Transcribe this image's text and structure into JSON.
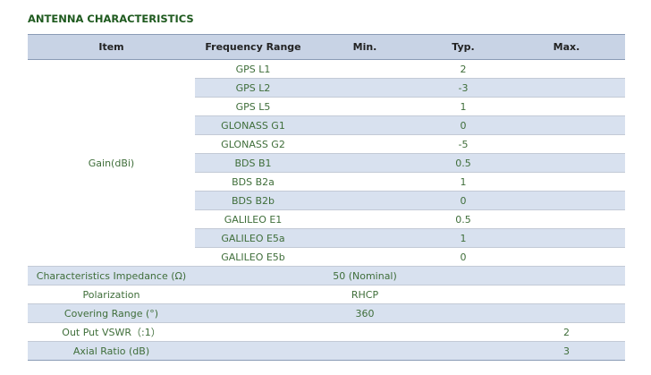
{
  "header": {
    "title": "ANTENNA CHARACTERISTICS"
  },
  "table": {
    "columns": [
      "Item",
      "Frequency Range",
      "Min.",
      "Typ.",
      "Max."
    ],
    "gain": {
      "label": "Gain(dBi)",
      "rows": [
        {
          "frequency": "GPS L1",
          "typ": "2"
        },
        {
          "frequency": "GPS L2",
          "typ": "-3"
        },
        {
          "frequency": "GPS L5",
          "typ": "1"
        },
        {
          "frequency": "GLONASS G1",
          "typ": "0"
        },
        {
          "frequency": "GLONASS G2",
          "typ": "-5"
        },
        {
          "frequency": "BDS B1",
          "typ": "0.5"
        },
        {
          "frequency": "BDS B2a",
          "typ": "1"
        },
        {
          "frequency": "BDS B2b",
          "typ": "0"
        },
        {
          "frequency": "GALILEO E1",
          "typ": "0.5"
        },
        {
          "frequency": "GALILEO E5a",
          "typ": "1"
        },
        {
          "frequency": "GALILEO E5b",
          "typ": "0"
        }
      ]
    },
    "rows": [
      {
        "item": "Characteristics Impedance (Ω)",
        "min": "50 (Nominal)"
      },
      {
        "item": "Polarization",
        "min": "RHCP"
      },
      {
        "item": "Covering Range (°)",
        "min": "360"
      },
      {
        "item": "Out Put VSWR（:1）",
        "max": "2"
      },
      {
        "item": "Axial Ratio (dB)",
        "max": "3"
      }
    ]
  }
}
